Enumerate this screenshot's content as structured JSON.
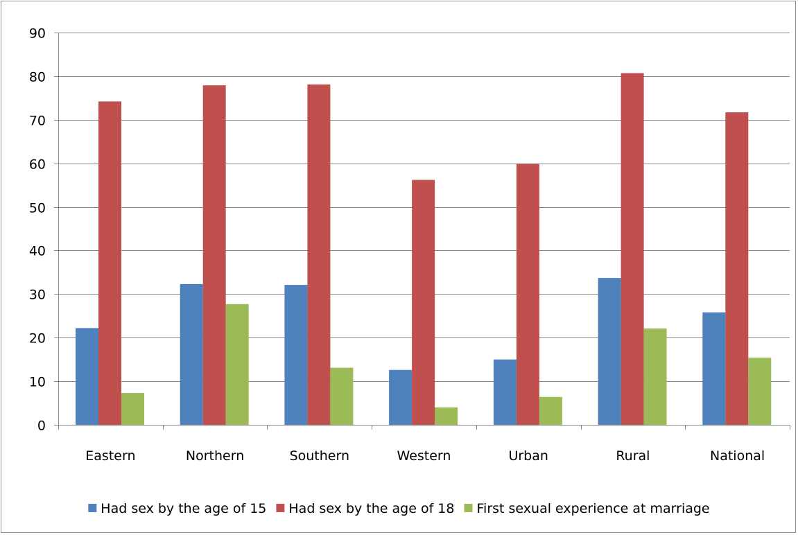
{
  "chart_data": {
    "type": "bar",
    "title": "",
    "xlabel": "",
    "ylabel": "",
    "categories": [
      "Eastern",
      "Northern",
      "Southern",
      "Western",
      "Urban",
      "Rural",
      "National"
    ],
    "series": [
      {
        "name": "Had sex by the age of 15",
        "color": "#4f81bd",
        "values": [
          22.2,
          32.3,
          32.1,
          12.6,
          15.0,
          33.7,
          25.8
        ]
      },
      {
        "name": "Had sex by the age of 18",
        "color": "#c0504d",
        "values": [
          74.2,
          77.9,
          78.1,
          56.2,
          59.9,
          80.7,
          71.7
        ]
      },
      {
        "name": "First sexual experience at marriage",
        "color": "#9bbb59",
        "values": [
          7.3,
          27.7,
          13.1,
          4.0,
          6.4,
          22.1,
          15.4
        ]
      }
    ],
    "ylim": [
      0,
      90
    ],
    "yticks": [
      0,
      10,
      20,
      30,
      40,
      50,
      60,
      70,
      80,
      90
    ],
    "grid": true,
    "legend_position": "bottom"
  }
}
